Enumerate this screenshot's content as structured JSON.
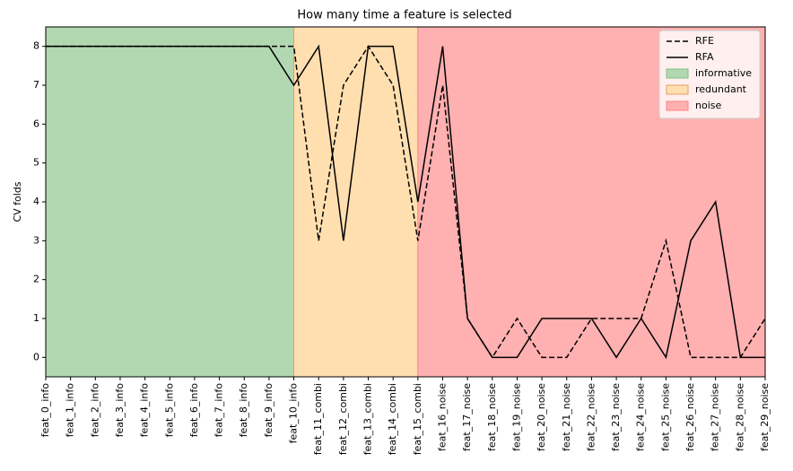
{
  "chart_data": {
    "type": "line",
    "title": "How many time a feature is selected",
    "y_label": "CV folds",
    "categories": [
      "feat_0_info",
      "feat_1_info",
      "feat_2_info",
      "feat_3_info",
      "feat_4_info",
      "feat_5_info",
      "feat_6_info",
      "feat_7_info",
      "feat_8_info",
      "feat_9_info",
      "feat_10_info",
      "feat_11_combi",
      "feat_12_combi",
      "feat_13_combi",
      "feat_14_combi",
      "feat_15_combi",
      "feat_16_noise",
      "feat_17_noise",
      "feat_18_noise",
      "feat_19_noise",
      "feat_20_noise",
      "feat_21_noise",
      "feat_22_noise",
      "feat_23_noise",
      "feat_24_noise",
      "feat_25_noise",
      "feat_26_noise",
      "feat_27_noise",
      "feat_28_noise",
      "feat_29_noise"
    ],
    "series": [
      {
        "name": "RFE",
        "color": "#000000",
        "dash": "dashed",
        "values": [
          8,
          8,
          8,
          8,
          8,
          8,
          8,
          8,
          8,
          8,
          8,
          3,
          7,
          8,
          7,
          3,
          7,
          1,
          0,
          1,
          0,
          0,
          1,
          1,
          1,
          3,
          0,
          0,
          0,
          1
        ]
      },
      {
        "name": "RFA",
        "color": "#000000",
        "dash": "solid",
        "values": [
          8,
          8,
          8,
          8,
          8,
          8,
          8,
          8,
          8,
          8,
          7,
          8,
          3,
          8,
          8,
          4,
          8,
          1,
          0,
          0,
          1,
          1,
          1,
          0,
          1,
          0,
          3,
          4,
          0,
          0
        ]
      }
    ],
    "spans": [
      {
        "name": "informative",
        "color": "#b2d8b2",
        "edge": "#7fbf7f",
        "start": 0,
        "end": 10
      },
      {
        "name": "redundant",
        "color": "#ffdfb0",
        "edge": "#e0a060",
        "start": 10,
        "end": 15
      },
      {
        "name": "noise",
        "color": "#ffb0b0",
        "edge": "#ff8080",
        "start": 15,
        "end": 29
      }
    ],
    "ylim": [
      -0.5,
      8.5
    ],
    "yticks": [
      0,
      1,
      2,
      3,
      4,
      5,
      6,
      7,
      8
    ],
    "legend": "upper right"
  }
}
